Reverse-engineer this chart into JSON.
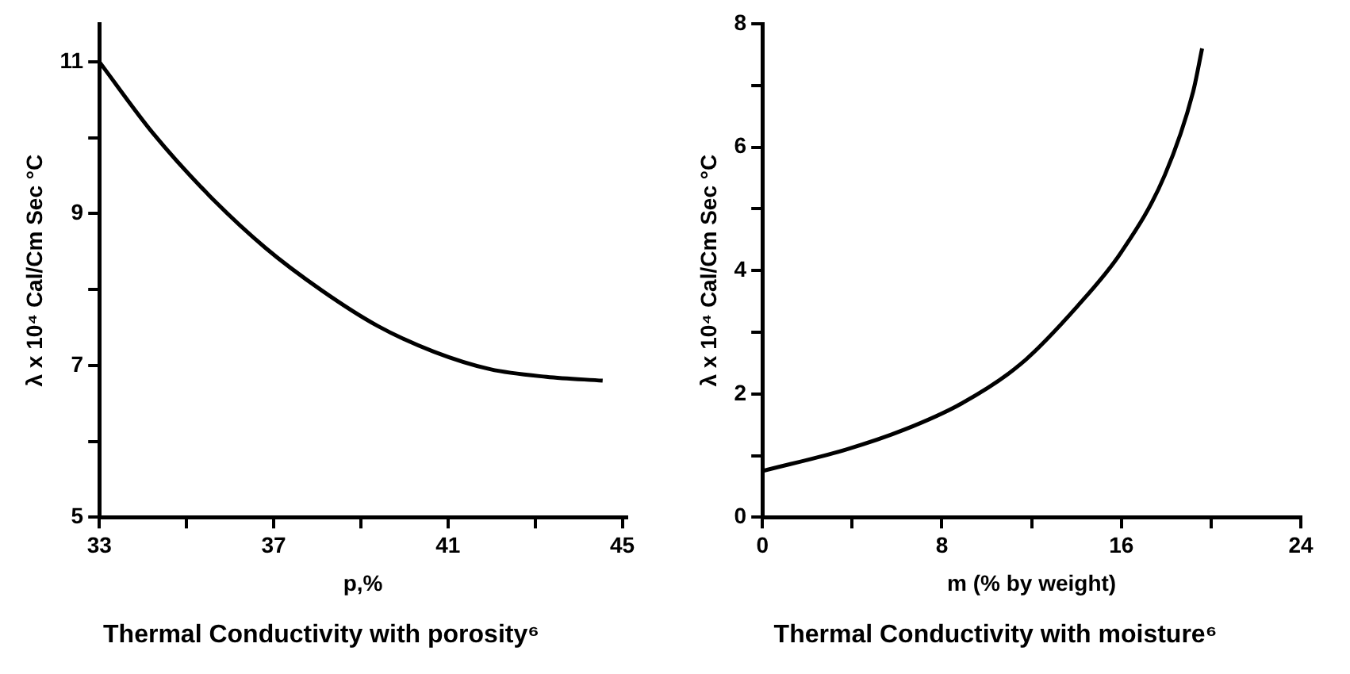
{
  "chart_data": [
    {
      "type": "line",
      "title": "Thermal Conductivity with porosity⁶",
      "xlabel": "p,%",
      "ylabel": "λ x 10⁴ Cal/Cm Sec °C",
      "x": [
        33,
        34.23,
        35.52,
        36.81,
        38.1,
        39.39,
        40.68,
        41.97,
        43.26,
        44.55
      ],
      "series": [
        {
          "color": "#000000",
          "values": [
            11,
            10.06,
            9.24,
            8.55,
            7.99,
            7.52,
            7.18,
            6.95,
            6.85,
            6.8
          ]
        }
      ],
      "xlim": [
        33,
        45.1
      ],
      "ylim": [
        5,
        11.5
      ],
      "xticks": [
        33,
        {
          "value": 35,
          "label": null
        },
        37,
        {
          "value": 39,
          "label": null
        },
        41,
        {
          "value": 43,
          "label": null
        },
        45
      ],
      "yticks": [
        5,
        {
          "value": 6,
          "label": null
        },
        7,
        {
          "value": 8,
          "label": null
        },
        9,
        {
          "value": 10,
          "label": null
        },
        11
      ],
      "grid": false,
      "legend": false,
      "marker": "none",
      "line_style": "solid"
    },
    {
      "type": "line",
      "title": "Thermal Conductivity with moisture⁶",
      "xlabel": "m (% by weight)",
      "ylabel": "λ x 10⁴ Cal/Cm Sec °C",
      "x": [
        0,
        3.74,
        6.32,
        8.9,
        11.5,
        14.06,
        16,
        17.94,
        19.2,
        19.6
      ],
      "series": [
        {
          "color": "#000000",
          "values": [
            0.75,
            1.1,
            1.42,
            1.85,
            2.48,
            3.43,
            4.3,
            5.55,
            6.9,
            7.6
          ]
        }
      ],
      "xlim": [
        0,
        24
      ],
      "ylim": [
        0,
        8
      ],
      "xticks": [
        0,
        {
          "value": 4,
          "label": null
        },
        8,
        {
          "value": 12,
          "label": null
        },
        16,
        {
          "value": 20,
          "label": null
        },
        24
      ],
      "yticks": [
        0,
        {
          "value": 1,
          "label": null
        },
        2,
        {
          "value": 3,
          "label": null
        },
        4,
        {
          "value": 5,
          "label": null
        },
        6,
        {
          "value": 7,
          "label": null
        },
        8
      ],
      "grid": false,
      "legend": false,
      "marker": "none",
      "line_style": "solid"
    }
  ]
}
